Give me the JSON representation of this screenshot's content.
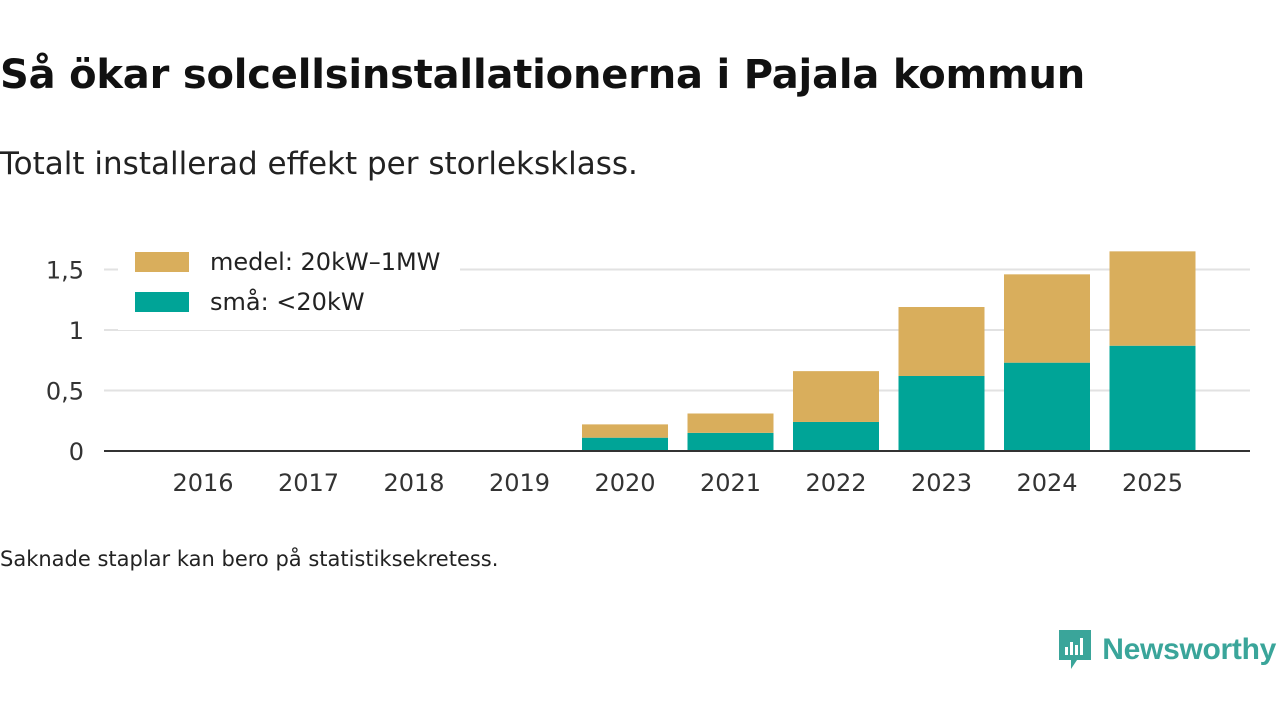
{
  "header": {
    "title": "Så ökar solcellsinstallationerna i Pajala kommun",
    "subtitle": "Totalt installerad effekt per storleksklass."
  },
  "footer": {
    "note": "Saknade staplar kan bero på statistiksekretess.",
    "brand": "Newsworthy"
  },
  "colors": {
    "medel": "#d9ae5c",
    "sma": "#00a497",
    "grid": "#e2e2e2",
    "axis": "#333333",
    "brand": "#3aa59a"
  },
  "chart_data": {
    "type": "bar",
    "stacked": true,
    "title": "Så ökar solcellsinstallationerna i Pajala kommun",
    "subtitle": "Totalt installerad effekt per storleksklass.",
    "xlabel": "",
    "ylabel": "",
    "categories": [
      "2016",
      "2017",
      "2018",
      "2019",
      "2020",
      "2021",
      "2022",
      "2023",
      "2024",
      "2025"
    ],
    "series": [
      {
        "name": "små: <20kW",
        "key": "sma",
        "values": [
          0,
          0,
          0,
          0,
          0.11,
          0.15,
          0.24,
          0.62,
          0.73,
          0.87
        ]
      },
      {
        "name": "medel: 20kW–1MW",
        "key": "medel",
        "values": [
          0,
          0,
          0,
          0,
          0.11,
          0.16,
          0.42,
          0.57,
          0.73,
          0.78
        ]
      }
    ],
    "legend_order": [
      "medel",
      "sma"
    ],
    "ylim": [
      0,
      1.65
    ],
    "yticks": [
      0,
      0.5,
      1,
      1.5
    ],
    "ytick_labels": [
      "0",
      "0,5",
      "1",
      "1,5"
    ],
    "grid": true,
    "legend_position": "top-left"
  }
}
